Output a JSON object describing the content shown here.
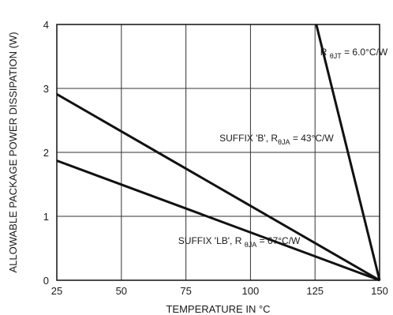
{
  "chart_data": {
    "type": "line",
    "xlabel": "TEMPERATURE IN °C",
    "ylabel": "ALLOWABLE PACKAGE POWER DISSIPATION (W)",
    "xlim": [
      25,
      150
    ],
    "ylim": [
      0,
      4
    ],
    "x_ticks": [
      25,
      50,
      75,
      100,
      125,
      150
    ],
    "y_ticks": [
      0,
      1,
      2,
      3,
      4
    ],
    "grid": true,
    "series": [
      {
        "id": "rjt",
        "x": [
          125.5,
          150
        ],
        "y": [
          4,
          0
        ]
      },
      {
        "id": "suffix_b",
        "x": [
          25,
          150
        ],
        "y": [
          2.91,
          0
        ]
      },
      {
        "id": "suffix_lb",
        "x": [
          25,
          150
        ],
        "y": [
          1.87,
          0
        ]
      }
    ],
    "annotations": [
      {
        "series": "rjt",
        "text_pre": "R ",
        "subscript": "θJT",
        "text_post": " = 6.0°C/W",
        "x": 127,
        "y": 3.52
      },
      {
        "series": "suffix_b",
        "text_pre": "SUFFIX 'B', R",
        "subscript": "θJA",
        "text_post": " = 43°C/W",
        "x": 88,
        "y": 2.17
      },
      {
        "series": "suffix_lb",
        "text_pre": "SUFFIX 'LB', R ",
        "subscript": "θJA",
        "text_post": " = 67°C/W",
        "x": 72,
        "y": 0.57
      }
    ]
  }
}
